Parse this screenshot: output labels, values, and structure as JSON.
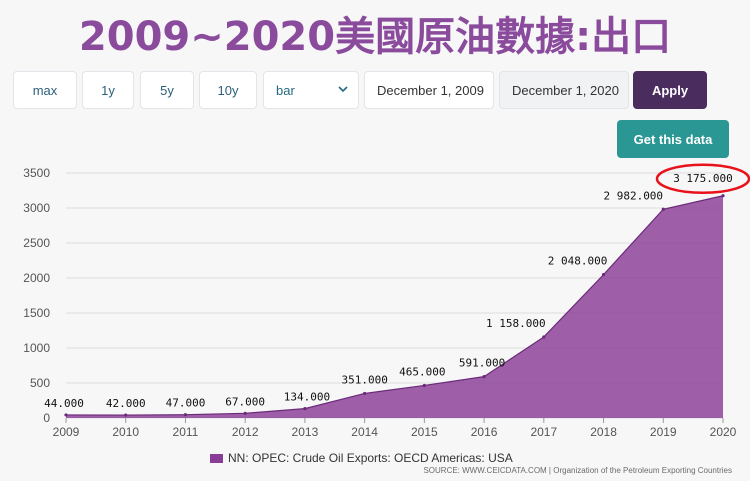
{
  "title": "2009~2020美國原油數據:出口",
  "toolbar": {
    "range_buttons": [
      "max",
      "1y",
      "5y",
      "10y"
    ],
    "chart_type_value": "bar",
    "start_date": "December 1, 2009",
    "end_date": "December 1, 2020",
    "apply_label": "Apply",
    "get_data_label": "Get this data"
  },
  "colors": {
    "area_fill": "#8a3d96",
    "area_stroke": "#6a2a78",
    "highlight_ring": "#e8121a",
    "apply_bg": "#4b2c5e",
    "get_data_bg": "#2a9795"
  },
  "chart_data": {
    "type": "area",
    "x": [
      2009,
      2010,
      2011,
      2012,
      2013,
      2014,
      2015,
      2016,
      2017,
      2018,
      2019,
      2020
    ],
    "series": [
      {
        "name": "NN: OPEC: Crude Oil Exports: OECD Americas: USA",
        "values": [
          44,
          42,
          47,
          67,
          134,
          351,
          465,
          591,
          1158,
          2048,
          2982,
          3175
        ]
      }
    ],
    "data_labels": [
      "44.000",
      "42.000",
      "47.000",
      "67.000",
      "134.000",
      "351.000",
      "465.000",
      "591.000",
      "1 158.000",
      "2 048.000",
      "2 982.000",
      "3 175.000"
    ],
    "highlighted_point": "3 175.000",
    "y_ticks": [
      0,
      500,
      1000,
      1500,
      2000,
      2500,
      3000,
      3500
    ],
    "x_ticks": [
      "2009",
      "2010",
      "2011",
      "2012",
      "2013",
      "2014",
      "2015",
      "2016",
      "2017",
      "2018",
      "2019",
      "2020"
    ],
    "ylim": [
      0,
      3500
    ],
    "grid": true,
    "legend_position": "bottom-center"
  },
  "source": "SOURCE: WWW.CEICDATA.COM | Organization of the Petroleum Exporting Countries"
}
